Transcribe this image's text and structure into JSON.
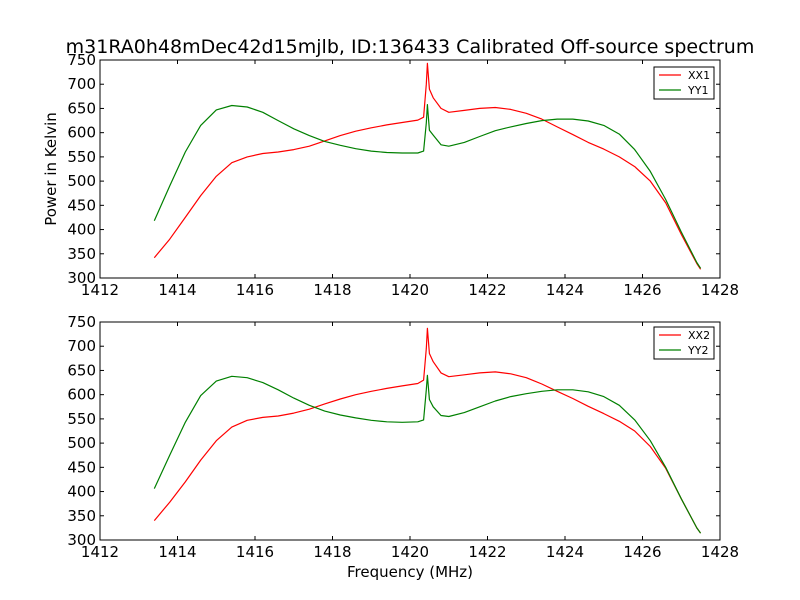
{
  "figure": {
    "title": "m31RA0h48mDec42d15mjlb, ID:136433 Calibrated Off-source spectrum"
  },
  "colors": {
    "xx": "#ff0000",
    "yy": "#008000",
    "frame": "#000000"
  },
  "chart_data": [
    {
      "type": "line",
      "ylabel": "Power in Kelvin",
      "xlabel": "",
      "xlim": [
        1412,
        1428
      ],
      "ylim": [
        300,
        750
      ],
      "xticks": [
        "1412",
        "1414",
        "1416",
        "1418",
        "1420",
        "1422",
        "1424",
        "1426",
        "1428"
      ],
      "yticks": [
        "300",
        "350",
        "400",
        "450",
        "500",
        "550",
        "600",
        "650",
        "700",
        "750"
      ],
      "legend_position": "top-right",
      "grid": false,
      "series": [
        {
          "name": "XX1",
          "color": "#ff0000",
          "points": [
            [
              1413.4,
              342
            ],
            [
              1413.8,
              380
            ],
            [
              1414.2,
              425
            ],
            [
              1414.6,
              470
            ],
            [
              1415.0,
              510
            ],
            [
              1415.4,
              538
            ],
            [
              1415.8,
              550
            ],
            [
              1416.2,
              557
            ],
            [
              1416.6,
              560
            ],
            [
              1417.0,
              565
            ],
            [
              1417.4,
              572
            ],
            [
              1417.8,
              583
            ],
            [
              1418.2,
              594
            ],
            [
              1418.6,
              603
            ],
            [
              1419.0,
              610
            ],
            [
              1419.4,
              616
            ],
            [
              1419.8,
              621
            ],
            [
              1420.2,
              626
            ],
            [
              1420.35,
              632
            ],
            [
              1420.42,
              700
            ],
            [
              1420.45,
              743
            ],
            [
              1420.5,
              690
            ],
            [
              1420.6,
              672
            ],
            [
              1420.8,
              650
            ],
            [
              1421.0,
              642
            ],
            [
              1421.4,
              646
            ],
            [
              1421.8,
              650
            ],
            [
              1422.2,
              652
            ],
            [
              1422.6,
              648
            ],
            [
              1423.0,
              640
            ],
            [
              1423.4,
              628
            ],
            [
              1423.8,
              612
            ],
            [
              1424.2,
              596
            ],
            [
              1424.6,
              580
            ],
            [
              1425.0,
              566
            ],
            [
              1425.4,
              550
            ],
            [
              1425.8,
              530
            ],
            [
              1426.2,
              500
            ],
            [
              1426.6,
              455
            ],
            [
              1427.0,
              390
            ],
            [
              1427.4,
              330
            ],
            [
              1427.5,
              318
            ]
          ]
        },
        {
          "name": "YY1",
          "color": "#008000",
          "points": [
            [
              1413.4,
              418
            ],
            [
              1413.8,
              490
            ],
            [
              1414.2,
              560
            ],
            [
              1414.6,
              615
            ],
            [
              1415.0,
              647
            ],
            [
              1415.4,
              656
            ],
            [
              1415.8,
              653
            ],
            [
              1416.2,
              642
            ],
            [
              1416.6,
              625
            ],
            [
              1417.0,
              608
            ],
            [
              1417.4,
              594
            ],
            [
              1417.8,
              582
            ],
            [
              1418.2,
              574
            ],
            [
              1418.6,
              567
            ],
            [
              1419.0,
              562
            ],
            [
              1419.4,
              559
            ],
            [
              1419.8,
              558
            ],
            [
              1420.2,
              558
            ],
            [
              1420.35,
              562
            ],
            [
              1420.42,
              620
            ],
            [
              1420.45,
              658
            ],
            [
              1420.5,
              605
            ],
            [
              1420.6,
              595
            ],
            [
              1420.8,
              575
            ],
            [
              1421.0,
              572
            ],
            [
              1421.4,
              580
            ],
            [
              1421.8,
              592
            ],
            [
              1422.2,
              604
            ],
            [
              1422.6,
              612
            ],
            [
              1423.0,
              619
            ],
            [
              1423.4,
              625
            ],
            [
              1423.8,
              628
            ],
            [
              1424.2,
              628
            ],
            [
              1424.6,
              624
            ],
            [
              1425.0,
              615
            ],
            [
              1425.4,
              597
            ],
            [
              1425.8,
              565
            ],
            [
              1426.2,
              520
            ],
            [
              1426.6,
              462
            ],
            [
              1427.0,
              395
            ],
            [
              1427.4,
              332
            ],
            [
              1427.5,
              320
            ]
          ]
        }
      ]
    },
    {
      "type": "line",
      "ylabel": "",
      "xlabel": "Frequency (MHz)",
      "xlim": [
        1412,
        1428
      ],
      "ylim": [
        300,
        750
      ],
      "xticks": [
        "1412",
        "1414",
        "1416",
        "1418",
        "1420",
        "1422",
        "1424",
        "1426",
        "1428"
      ],
      "yticks": [
        "300",
        "350",
        "400",
        "450",
        "500",
        "550",
        "600",
        "650",
        "700",
        "750"
      ],
      "legend_position": "top-right",
      "grid": false,
      "series": [
        {
          "name": "XX2",
          "color": "#ff0000",
          "points": [
            [
              1413.4,
              340
            ],
            [
              1413.8,
              378
            ],
            [
              1414.2,
              420
            ],
            [
              1414.6,
              465
            ],
            [
              1415.0,
              505
            ],
            [
              1415.4,
              533
            ],
            [
              1415.8,
              547
            ],
            [
              1416.2,
              553
            ],
            [
              1416.6,
              556
            ],
            [
              1417.0,
              562
            ],
            [
              1417.4,
              570
            ],
            [
              1417.8,
              581
            ],
            [
              1418.2,
              591
            ],
            [
              1418.6,
              600
            ],
            [
              1419.0,
              607
            ],
            [
              1419.4,
              613
            ],
            [
              1419.8,
              618
            ],
            [
              1420.2,
              623
            ],
            [
              1420.35,
              630
            ],
            [
              1420.42,
              695
            ],
            [
              1420.45,
              737
            ],
            [
              1420.5,
              685
            ],
            [
              1420.6,
              668
            ],
            [
              1420.8,
              645
            ],
            [
              1421.0,
              637
            ],
            [
              1421.4,
              641
            ],
            [
              1421.8,
              645
            ],
            [
              1422.2,
              647
            ],
            [
              1422.6,
              643
            ],
            [
              1423.0,
              635
            ],
            [
              1423.4,
              622
            ],
            [
              1423.8,
              607
            ],
            [
              1424.2,
              592
            ],
            [
              1424.6,
              576
            ],
            [
              1425.0,
              561
            ],
            [
              1425.4,
              545
            ],
            [
              1425.8,
              525
            ],
            [
              1426.2,
              493
            ],
            [
              1426.6,
              448
            ],
            [
              1427.0,
              385
            ],
            [
              1427.4,
              325
            ],
            [
              1427.5,
              314
            ]
          ]
        },
        {
          "name": "YY2",
          "color": "#008000",
          "points": [
            [
              1413.4,
              406
            ],
            [
              1413.8,
              475
            ],
            [
              1414.2,
              543
            ],
            [
              1414.6,
              598
            ],
            [
              1415.0,
              628
            ],
            [
              1415.4,
              638
            ],
            [
              1415.8,
              635
            ],
            [
              1416.2,
              625
            ],
            [
              1416.6,
              610
            ],
            [
              1417.0,
              593
            ],
            [
              1417.4,
              578
            ],
            [
              1417.8,
              566
            ],
            [
              1418.2,
              558
            ],
            [
              1418.6,
              552
            ],
            [
              1419.0,
              547
            ],
            [
              1419.4,
              544
            ],
            [
              1419.8,
              543
            ],
            [
              1420.2,
              544
            ],
            [
              1420.35,
              548
            ],
            [
              1420.42,
              610
            ],
            [
              1420.45,
              640
            ],
            [
              1420.5,
              590
            ],
            [
              1420.6,
              575
            ],
            [
              1420.8,
              557
            ],
            [
              1421.0,
              555
            ],
            [
              1421.4,
              563
            ],
            [
              1421.8,
              575
            ],
            [
              1422.2,
              587
            ],
            [
              1422.6,
              596
            ],
            [
              1423.0,
              602
            ],
            [
              1423.4,
              607
            ],
            [
              1423.8,
              610
            ],
            [
              1424.2,
              610
            ],
            [
              1424.6,
              606
            ],
            [
              1425.0,
              596
            ],
            [
              1425.4,
              578
            ],
            [
              1425.8,
              548
            ],
            [
              1426.2,
              505
            ],
            [
              1426.6,
              450
            ],
            [
              1427.0,
              385
            ],
            [
              1427.4,
              325
            ],
            [
              1427.5,
              314
            ]
          ]
        }
      ]
    }
  ]
}
